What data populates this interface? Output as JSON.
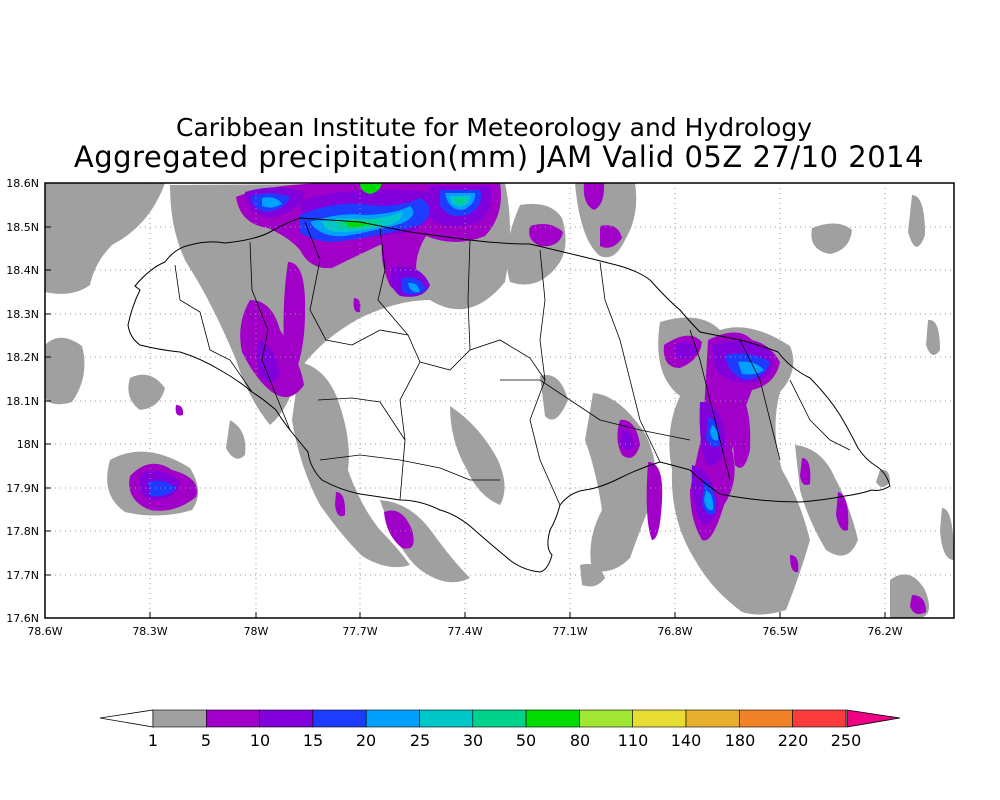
{
  "title": {
    "line1": "Caribbean Institute for Meteorology and Hydrology",
    "line2": "Aggregated precipitation(mm) JAM Valid 05Z 27/10 2014"
  },
  "map": {
    "lon_range": [
      -78.6,
      -76.0
    ],
    "lat_range": [
      17.6,
      18.6
    ],
    "grid": "dotted",
    "x_ticks": [
      "78.6W",
      "78.3W",
      "78W",
      "77.7W",
      "77.4W",
      "77.1W",
      "76.8W",
      "76.5W",
      "76.2W"
    ],
    "y_ticks": [
      "17.6N",
      "17.7N",
      "17.8N",
      "17.9N",
      "18N",
      "18.1N",
      "18.2N",
      "18.3N",
      "18.4N",
      "18.5N",
      "18.6N"
    ]
  },
  "colorbar": {
    "labels": [
      "1",
      "5",
      "10",
      "15",
      "20",
      "25",
      "30",
      "50",
      "80",
      "110",
      "140",
      "180",
      "220",
      "250"
    ],
    "colors": [
      "#a0a0a0",
      "#a000c8",
      "#8200dc",
      "#1e3cff",
      "#00a0ff",
      "#00c8c8",
      "#00d28c",
      "#00dc00",
      "#a0e632",
      "#e6dc32",
      "#e6af2d",
      "#f08228",
      "#fa3c3c",
      "#f00082"
    ]
  }
}
